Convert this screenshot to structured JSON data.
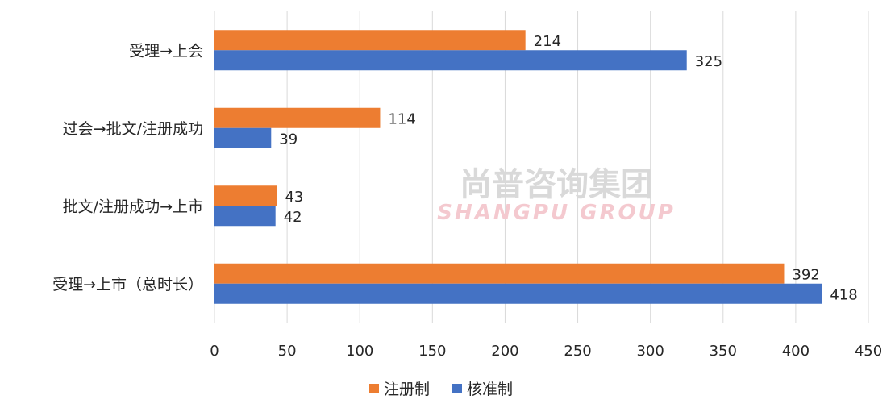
{
  "watermark": {
    "cn": "尚普咨询集团",
    "en": "SHANGPU GROUP"
  },
  "chart_data": {
    "type": "bar",
    "orientation": "horizontal",
    "categories": [
      "受理→上会",
      "过会→批文/注册成功",
      "批文/注册成功→上市",
      "受理→上市（总时长）"
    ],
    "series": [
      {
        "name": "注册制",
        "color": "#ED7D31",
        "values": [
          214,
          114,
          43,
          392
        ]
      },
      {
        "name": "核准制",
        "color": "#4472C4",
        "values": [
          325,
          39,
          42,
          418
        ]
      }
    ],
    "xticks": [
      "0",
      "50",
      "100",
      "150",
      "200",
      "250",
      "300",
      "350",
      "400",
      "450"
    ],
    "xlim": [
      0,
      450
    ],
    "grid": true,
    "legend": "bottom",
    "title": "",
    "xlabel": "",
    "ylabel": ""
  }
}
